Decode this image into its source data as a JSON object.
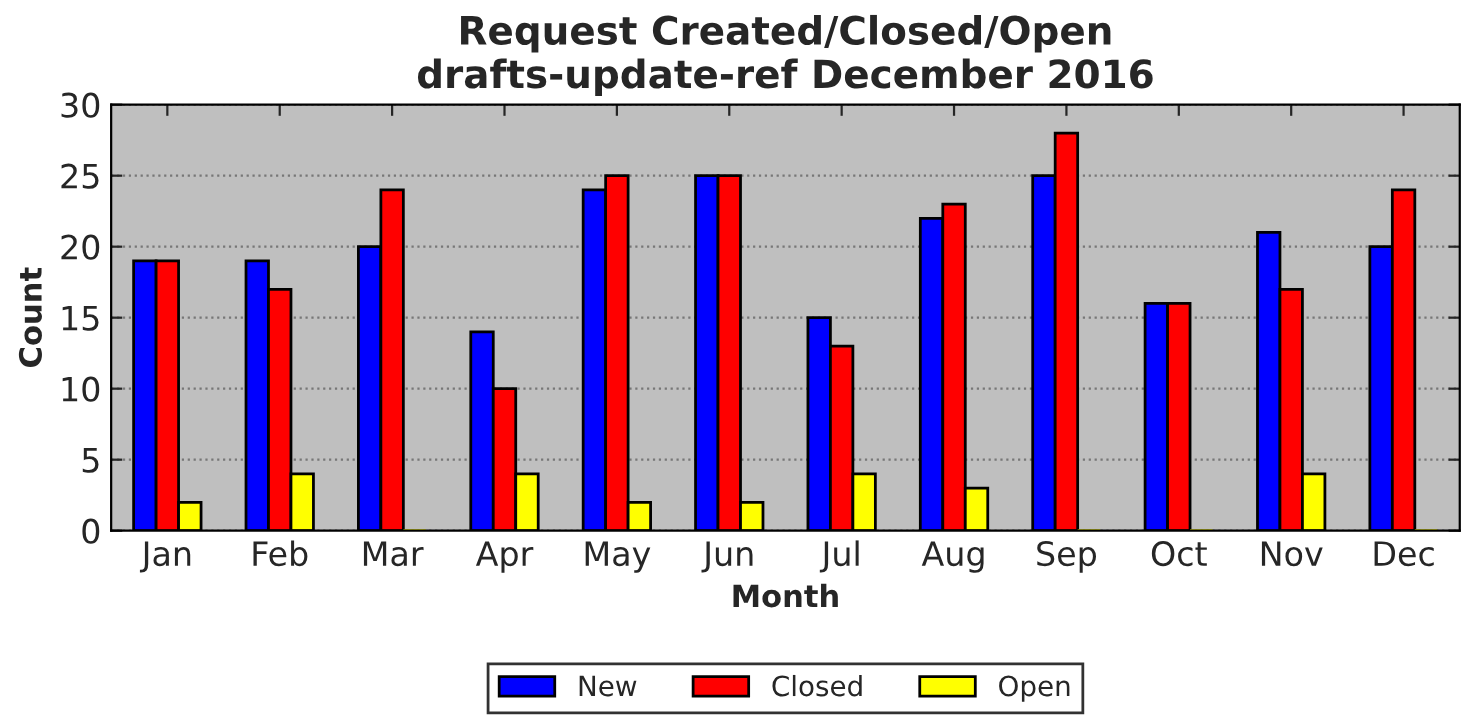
{
  "chart_data": {
    "type": "bar",
    "title": "Request Created/Closed/Open\ndrafts-update-ref December 2016",
    "xlabel": "Month",
    "ylabel": "Count",
    "categories": [
      "Jan",
      "Feb",
      "Mar",
      "Apr",
      "May",
      "Jun",
      "Jul",
      "Aug",
      "Sep",
      "Oct",
      "Nov",
      "Dec"
    ],
    "series": [
      {
        "name": "New",
        "color": "#0000ff",
        "values": [
          19,
          19,
          20,
          14,
          24,
          25,
          15,
          22,
          25,
          16,
          21,
          20
        ]
      },
      {
        "name": "Closed",
        "color": "#ff0000",
        "values": [
          19,
          17,
          24,
          10,
          25,
          25,
          13,
          23,
          28,
          16,
          17,
          24
        ]
      },
      {
        "name": "Open",
        "color": "#ffff00",
        "values": [
          2,
          4,
          0,
          4,
          2,
          2,
          4,
          3,
          0,
          0,
          4,
          0
        ]
      }
    ],
    "ylim": [
      0,
      30
    ],
    "yticks": [
      0,
      5,
      10,
      15,
      20,
      25,
      30
    ],
    "grid": "y",
    "legend": "bottom"
  }
}
